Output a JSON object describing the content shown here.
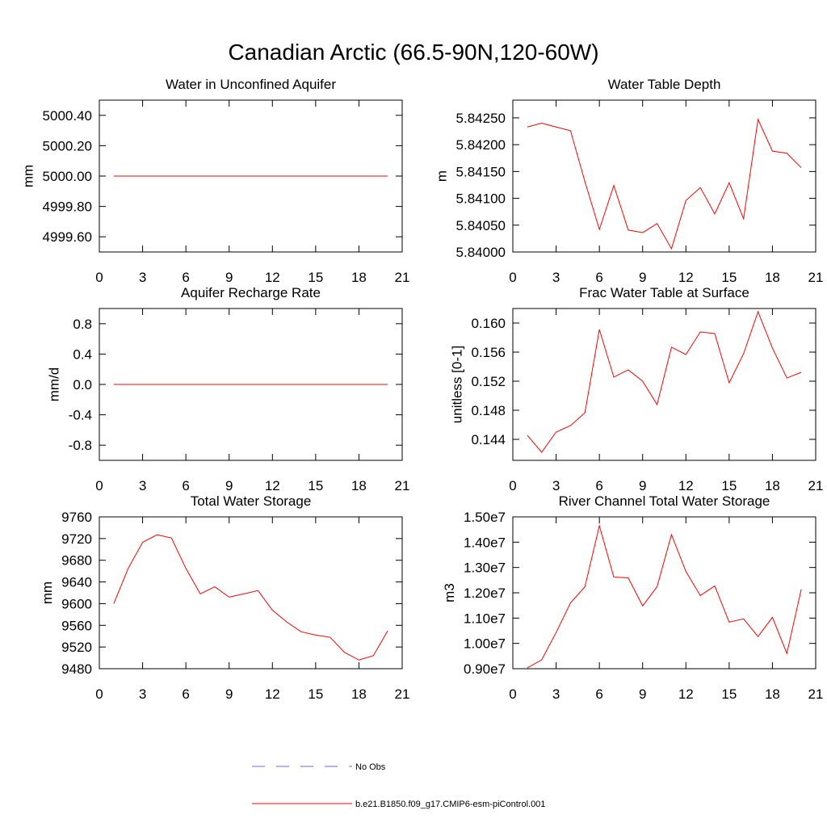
{
  "title": "Canadian Arctic (66.5-90N,120-60W)",
  "legend": [
    {
      "name": "No Obs",
      "color": "#6a6ad0",
      "dash": true
    },
    {
      "name": "b.e21.B1850.f09_g17.CMIP6-esm-piControl.001",
      "color": "#ff0000",
      "dash": false
    }
  ],
  "chart_data": [
    {
      "type": "line",
      "title": "Water in Unconfined Aquifer",
      "ylabel": "mm",
      "color": "#ff0000",
      "x": [
        1,
        2,
        3,
        4,
        5,
        6,
        7,
        8,
        9,
        10,
        11,
        12,
        13,
        14,
        15,
        16,
        17,
        18,
        19,
        20
      ],
      "values": [
        5000.0,
        5000.0,
        5000.0,
        5000.0,
        5000.0,
        5000.0,
        5000.0,
        5000.0,
        5000.0,
        5000.0,
        5000.0,
        5000.0,
        5000.0,
        5000.0,
        5000.0,
        5000.0,
        5000.0,
        5000.0,
        5000.0,
        5000.0
      ],
      "xlim": [
        0,
        21
      ],
      "xticks": [
        0,
        3,
        6,
        9,
        12,
        15,
        18,
        21
      ],
      "ylim": [
        4999.5,
        5000.5
      ],
      "yticks": [
        {
          "value": 4999.6,
          "label": "4999.60"
        },
        {
          "value": 4999.8,
          "label": "4999.80"
        },
        {
          "value": 5000.0,
          "label": "5000.00"
        },
        {
          "value": 5000.2,
          "label": "5000.20"
        },
        {
          "value": 5000.4,
          "label": "5000.40"
        }
      ]
    },
    {
      "type": "line",
      "title": "Water Table Depth",
      "ylabel": "m",
      "color": "#ff0000",
      "x": [
        1,
        2,
        3,
        4,
        5,
        6,
        7,
        8,
        9,
        10,
        11,
        12,
        13,
        14,
        15,
        16,
        17,
        18,
        19,
        20
      ],
      "values": [
        5.84233,
        5.8424,
        5.84233,
        5.84226,
        5.84131,
        5.84042,
        5.84124,
        5.84041,
        5.84036,
        5.84053,
        5.84006,
        5.84096,
        5.8412,
        5.84071,
        5.84129,
        5.84062,
        5.84247,
        5.84188,
        5.84184,
        5.84157
      ],
      "xlim": [
        0,
        21
      ],
      "xticks": [
        0,
        3,
        6,
        9,
        12,
        15,
        18,
        21
      ],
      "ylim": [
        5.84,
        5.84283
      ],
      "yticks": [
        {
          "value": 5.84,
          "label": "5.84000"
        },
        {
          "value": 5.8405,
          "label": "5.84050"
        },
        {
          "value": 5.841,
          "label": "5.84100"
        },
        {
          "value": 5.8415,
          "label": "5.84150"
        },
        {
          "value": 5.842,
          "label": "5.84200"
        },
        {
          "value": 5.8425,
          "label": "5.84250"
        }
      ]
    },
    {
      "type": "line",
      "title": "Aquifer Recharge Rate",
      "ylabel": "mm/d",
      "color": "#ff0000",
      "x": [
        1,
        2,
        3,
        4,
        5,
        6,
        7,
        8,
        9,
        10,
        11,
        12,
        13,
        14,
        15,
        16,
        17,
        18,
        19,
        20
      ],
      "values": [
        0,
        0,
        0,
        0,
        0,
        0,
        0,
        0,
        0,
        0,
        0,
        0,
        0,
        0,
        0,
        0,
        0,
        0,
        0,
        0
      ],
      "xlim": [
        0,
        21
      ],
      "xticks": [
        0,
        3,
        6,
        9,
        12,
        15,
        18,
        21
      ],
      "ylim": [
        -1,
        1
      ],
      "yticks": [
        -0.8,
        -0.4,
        {
          "value": 0,
          "label": "0.0"
        },
        0.4,
        0.8
      ]
    },
    {
      "type": "line",
      "title": "Frac Water Table at Surface",
      "ylabel": "unitless [0-1]",
      "color": "#ff0000",
      "x": [
        1,
        2,
        3,
        4,
        5,
        6,
        7,
        8,
        9,
        10,
        11,
        12,
        13,
        14,
        15,
        16,
        17,
        18,
        19,
        20
      ],
      "values": [
        0.14456,
        0.14222,
        0.145,
        0.14589,
        0.14767,
        0.15911,
        0.15256,
        0.15356,
        0.152,
        0.14878,
        0.15667,
        0.15567,
        0.15878,
        0.15856,
        0.15178,
        0.15578,
        0.16156,
        0.15656,
        0.15244,
        0.15322
      ],
      "xlim": [
        0,
        21
      ],
      "xticks": [
        0,
        3,
        6,
        9,
        12,
        15,
        18,
        21
      ],
      "ylim": [
        0.14111,
        0.162
      ],
      "yticks": [
        0.144,
        0.148,
        0.152,
        0.156,
        {
          "value": 0.16,
          "label": "0.160"
        }
      ]
    },
    {
      "type": "line",
      "title": "Total Water Storage",
      "ylabel": "mm",
      "color": "#ff0000",
      "x": [
        1,
        2,
        3,
        4,
        5,
        6,
        7,
        8,
        9,
        10,
        11,
        12,
        13,
        14,
        15,
        16,
        17,
        18,
        19,
        20
      ],
      "values": [
        9600,
        9665,
        9713,
        9727,
        9721,
        9665,
        9618,
        9631,
        9612,
        9618,
        9624,
        9588,
        9566,
        9548,
        9542,
        9538,
        9510,
        9496,
        9504,
        9550
      ],
      "xlim": [
        0,
        21
      ],
      "xticks": [
        0,
        3,
        6,
        9,
        12,
        15,
        18,
        21
      ],
      "ylim": [
        9480,
        9760
      ],
      "yticks": [
        9480,
        9520,
        9560,
        9600,
        9640,
        9680,
        9720,
        9760
      ]
    },
    {
      "type": "line",
      "title": "River Channel Total Water Storage",
      "ylabel": "m3",
      "color": "#ff0000",
      "x": [
        1,
        2,
        3,
        4,
        5,
        6,
        7,
        8,
        9,
        10,
        11,
        12,
        13,
        14,
        15,
        16,
        17,
        18,
        19,
        20
      ],
      "values": [
        9030000,
        9350000,
        10430000,
        11600000,
        12240000,
        14650000,
        12620000,
        12590000,
        11480000,
        12240000,
        14300000,
        12840000,
        11890000,
        12270000,
        10840000,
        10970000,
        10270000,
        11030000,
        9600000,
        12140000
      ],
      "xlim": [
        0,
        21
      ],
      "xticks": [
        0,
        3,
        6,
        9,
        12,
        15,
        18,
        21
      ],
      "ylim": [
        9000000,
        15000000
      ],
      "yticks": [
        {
          "value": 9000000,
          "label": "0.90e7"
        },
        {
          "value": 10000000,
          "label": "1.00e7"
        },
        {
          "value": 11000000,
          "label": "1.10e7"
        },
        {
          "value": 12000000,
          "label": "1.20e7"
        },
        {
          "value": 13000000,
          "label": "1.30e7"
        },
        {
          "value": 14000000,
          "label": "1.40e7"
        },
        {
          "value": 15000000,
          "label": "1.50e7"
        }
      ]
    }
  ]
}
